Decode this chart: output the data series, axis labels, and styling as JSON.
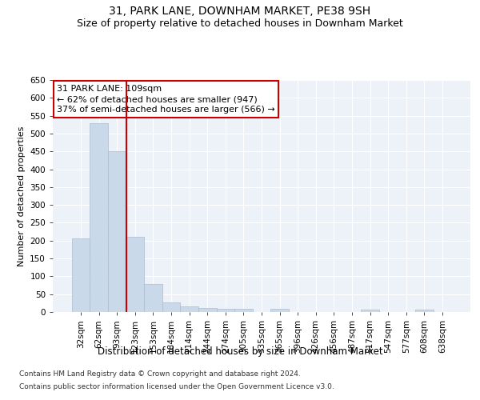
{
  "title": "31, PARK LANE, DOWNHAM MARKET, PE38 9SH",
  "subtitle": "Size of property relative to detached houses in Downham Market",
  "xlabel": "Distribution of detached houses by size in Downham Market",
  "ylabel": "Number of detached properties",
  "footnote1": "Contains HM Land Registry data © Crown copyright and database right 2024.",
  "footnote2": "Contains public sector information licensed under the Open Government Licence v3.0.",
  "categories": [
    "32sqm",
    "62sqm",
    "93sqm",
    "123sqm",
    "153sqm",
    "184sqm",
    "214sqm",
    "244sqm",
    "274sqm",
    "305sqm",
    "335sqm",
    "365sqm",
    "396sqm",
    "426sqm",
    "456sqm",
    "487sqm",
    "517sqm",
    "547sqm",
    "577sqm",
    "608sqm",
    "638sqm"
  ],
  "values": [
    207,
    530,
    450,
    211,
    78,
    26,
    15,
    12,
    8,
    8,
    0,
    8,
    0,
    0,
    0,
    0,
    7,
    0,
    0,
    7,
    0
  ],
  "bar_color": "#c9d9ea",
  "bar_edge_color": "#aabdd0",
  "vline_color": "#cc0000",
  "vline_x": 2.5,
  "annotation_text": "31 PARK LANE: 109sqm\n← 62% of detached houses are smaller (947)\n37% of semi-detached houses are larger (566) →",
  "ylim": [
    0,
    650
  ],
  "yticks": [
    0,
    50,
    100,
    150,
    200,
    250,
    300,
    350,
    400,
    450,
    500,
    550,
    600,
    650
  ],
  "background_color": "#edf1f8",
  "grid_color": "#ffffff",
  "fig_background": "#ffffff",
  "title_fontsize": 10,
  "subtitle_fontsize": 9,
  "ylabel_fontsize": 8,
  "xlabel_fontsize": 8.5,
  "tick_fontsize": 7.5,
  "annotation_fontsize": 8,
  "footnote_fontsize": 6.5
}
